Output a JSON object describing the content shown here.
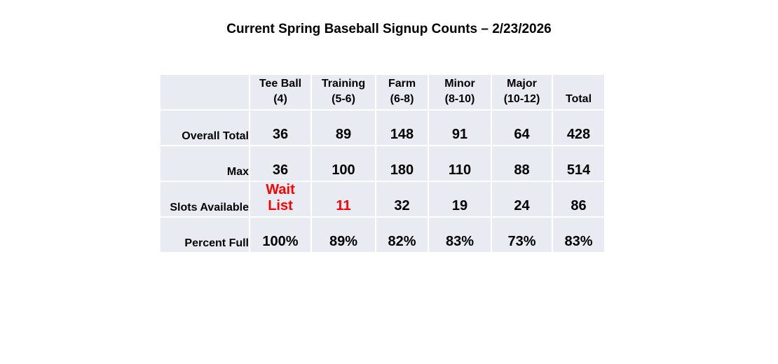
{
  "title": "Current Spring Baseball Signup Counts – 2/23/2026",
  "table": {
    "columns": [
      {
        "name": "Tee Ball",
        "ages": "(4)"
      },
      {
        "name": "Training",
        "ages": "(5-6)"
      },
      {
        "name": "Farm",
        "ages": "(6-8)"
      },
      {
        "name": "Minor",
        "ages": "(8-10)"
      },
      {
        "name": "Major",
        "ages": "(10-12)"
      },
      {
        "name": "Total",
        "ages": ""
      }
    ],
    "rows": [
      {
        "label": "Overall Total",
        "values": [
          "36",
          "89",
          "148",
          "91",
          "64",
          "428"
        ]
      },
      {
        "label": "Max",
        "values": [
          "36",
          "100",
          "180",
          "110",
          "88",
          "514"
        ]
      },
      {
        "label": "Slots Available",
        "values": [
          "Wait List",
          "11",
          "32",
          "19",
          "24",
          "86"
        ]
      },
      {
        "label": "Percent Full",
        "values": [
          "100%",
          "89%",
          "82%",
          "83%",
          "73%",
          "83%"
        ]
      }
    ],
    "highlight_color": "#ff0000"
  }
}
